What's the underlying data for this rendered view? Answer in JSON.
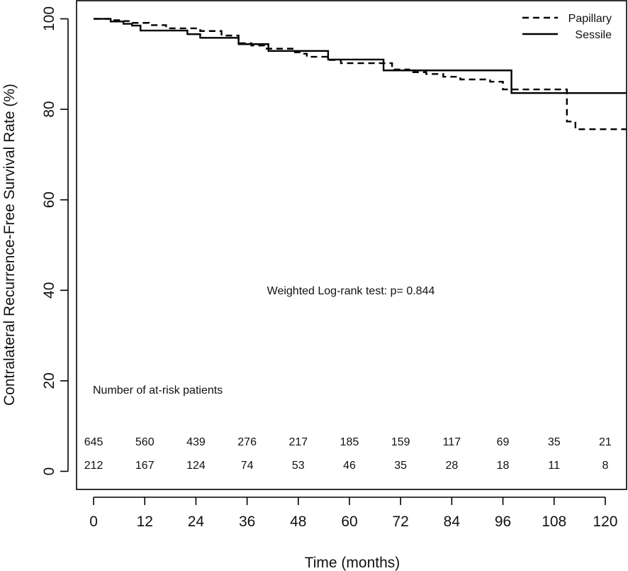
{
  "chart_data": {
    "type": "line",
    "subtype": "kaplan-meier step",
    "title": "",
    "xlabel": "Time (months)",
    "ylabel": "Contralateral Recurrence-Free Survival Rate (%)",
    "xlim": [
      -4,
      125
    ],
    "ylim": [
      -4,
      104
    ],
    "xticks": [
      0,
      12,
      24,
      36,
      48,
      60,
      72,
      84,
      96,
      108,
      120
    ],
    "yticks": [
      0,
      20,
      40,
      60,
      80,
      100
    ],
    "grid": false,
    "legend_position": "top-right",
    "annotation": "Weighted Log-rank test: p= 0.844",
    "risk_table": {
      "title": "Number of at-risk patients",
      "times": [
        0,
        12,
        24,
        36,
        48,
        60,
        72,
        84,
        96,
        108,
        120
      ],
      "rows": [
        {
          "name": "Papillary",
          "values": [
            "645",
            "560",
            "439",
            "276",
            "217",
            "185",
            "159",
            "117",
            "69",
            "35",
            "21"
          ]
        },
        {
          "name": "Sessile",
          "values": [
            "212",
            "167",
            "124",
            "74",
            "53",
            "46",
            "35",
            "28",
            "18",
            "11",
            "8"
          ]
        }
      ]
    },
    "series": [
      {
        "name": "Papillary",
        "line_style": "dashed",
        "color": "#000000",
        "x": [
          0,
          4,
          6,
          9,
          13,
          17,
          25,
          30,
          34,
          37,
          40,
          47,
          49,
          50,
          55,
          58,
          70,
          74,
          78,
          82,
          86,
          93,
          96,
          105,
          111,
          113,
          125
        ],
        "y": [
          100,
          99.7,
          99.5,
          99.1,
          98.6,
          97.9,
          97.3,
          96.3,
          94.6,
          94.1,
          93.4,
          92.6,
          92.3,
          91.6,
          90.9,
          90.2,
          88.8,
          88.2,
          87.8,
          87.2,
          86.6,
          86.1,
          84.4,
          84.4,
          77.3,
          75.6,
          75.6
        ]
      },
      {
        "name": "Sessile",
        "line_style": "solid",
        "color": "#000000",
        "x": [
          0,
          4,
          7,
          9,
          11,
          22,
          25,
          34,
          41,
          47,
          55,
          68,
          84,
          98,
          125
        ],
        "y": [
          100,
          99.4,
          98.9,
          98.5,
          97.4,
          96.6,
          95.8,
          94.4,
          92.9,
          92.9,
          91.0,
          88.6,
          88.6,
          83.6,
          83.6
        ]
      }
    ]
  }
}
